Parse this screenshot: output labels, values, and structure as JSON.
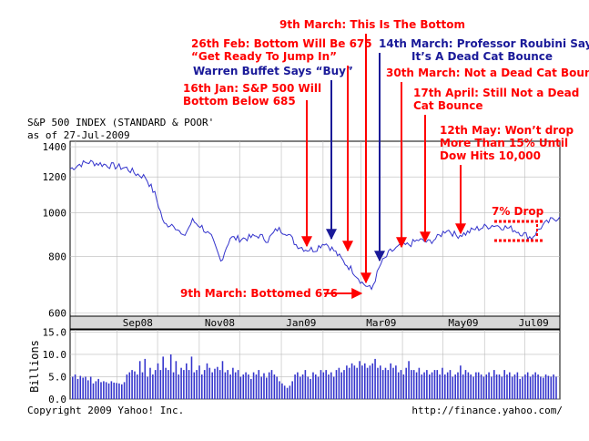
{
  "header": {
    "title": "S&P 500 INDEX (STANDARD & POOR'",
    "asof": "as of 27-Jul-2009"
  },
  "footer": {
    "copyright": "Copyright 2009 Yahoo! Inc.",
    "url": "http://finance.yahoo.com/"
  },
  "colors": {
    "price_line": "#3333cc",
    "volume_bar": "#3333cc",
    "annotation_red": "#ff0000",
    "annotation_blue": "#1a1a99",
    "axis_band": "#d8d8d8",
    "grid": "#bbbbbb"
  },
  "annotations": [
    {
      "id": "jan16",
      "color": "red",
      "lines": [
        "16th Jan: S&P 500 Will",
        "Bottom Below 685"
      ]
    },
    {
      "id": "feb26",
      "color": "red",
      "lines": [
        "26th Feb: Bottom Will Be 675",
        "“Get Ready To Jump In”"
      ]
    },
    {
      "id": "buffett",
      "color": "blue",
      "lines": [
        "Warren Buffet Says “Buy”"
      ]
    },
    {
      "id": "mar9top",
      "color": "red",
      "lines": [
        "9th March: This Is The Bottom"
      ]
    },
    {
      "id": "mar14",
      "color": "blue",
      "lines": [
        "14th March: Professor Roubini Says",
        "It’s A  Dead Cat Bounce"
      ]
    },
    {
      "id": "mar30",
      "color": "red",
      "lines": [
        "30th March: Not a Dead Cat Bounce"
      ]
    },
    {
      "id": "apr17",
      "color": "red",
      "lines": [
        "17th April: Still Not a Dead",
        "Cat Bounce"
      ]
    },
    {
      "id": "may12",
      "color": "red",
      "lines": [
        "12th May: Won’t drop",
        "More Than 15% Until",
        "Dow Hits 10,000"
      ]
    },
    {
      "id": "drop",
      "color": "red",
      "lines": [
        "7% Drop"
      ]
    },
    {
      "id": "bottomed",
      "color": "red",
      "lines": [
        "9th March: Bottomed 676"
      ]
    }
  ],
  "chart_data": [
    {
      "type": "line",
      "x_tick_labels": [
        "Sep08",
        "Nov08",
        "Jan09",
        "Mar09",
        "May09",
        "Jul09"
      ],
      "y_tick_labels": [
        "1400",
        "1200",
        "1000",
        "800",
        "600"
      ],
      "y_ticks": [
        1400,
        1200,
        1000,
        800,
        600
      ],
      "ylim": [
        590,
        1440
      ],
      "y_scale": "log",
      "grid": true,
      "x_range": [
        "2008-07-28",
        "2009-07-27"
      ],
      "series": [
        {
          "x": [
            "2008-07-28",
            "2008-08-04",
            "2008-08-11",
            "2008-08-18",
            "2008-08-25",
            "2008-09-01",
            "2008-09-08",
            "2008-09-15",
            "2008-09-22",
            "2008-09-29",
            "2008-10-06",
            "2008-10-13",
            "2008-10-20",
            "2008-10-27",
            "2008-11-03",
            "2008-11-10",
            "2008-11-17",
            "2008-11-24",
            "2008-12-01",
            "2008-12-08",
            "2008-12-15",
            "2008-12-22",
            "2008-12-29",
            "2009-01-05",
            "2009-01-12",
            "2009-01-19",
            "2009-01-26",
            "2009-02-02",
            "2009-02-09",
            "2009-02-16",
            "2009-02-23",
            "2009-03-02",
            "2009-03-09",
            "2009-03-16",
            "2009-03-23",
            "2009-03-30",
            "2009-04-06",
            "2009-04-13",
            "2009-04-20",
            "2009-04-27",
            "2009-05-04",
            "2009-05-11",
            "2009-05-18",
            "2009-05-25",
            "2009-06-01",
            "2009-06-08",
            "2009-06-15",
            "2009-06-22",
            "2009-06-29",
            "2009-07-06",
            "2009-07-13",
            "2009-07-20",
            "2009-07-27"
          ],
          "values": [
            1250,
            1280,
            1295,
            1285,
            1275,
            1265,
            1255,
            1220,
            1200,
            1100,
            940,
            945,
            880,
            960,
            930,
            880,
            780,
            880,
            875,
            880,
            890,
            870,
            920,
            905,
            850,
            830,
            830,
            860,
            825,
            780,
            745,
            700,
            676,
            770,
            820,
            840,
            850,
            870,
            860,
            880,
            920,
            890,
            900,
            920,
            930,
            940,
            930,
            920,
            900,
            880,
            930,
            960,
            980
          ]
        }
      ]
    },
    {
      "type": "bar",
      "ylabel": "Billions",
      "y_tick_labels": [
        "15.0",
        "10.0",
        "5.0",
        "0.0"
      ],
      "y_ticks": [
        15,
        10,
        5,
        0
      ],
      "ylim": [
        0,
        15.5
      ],
      "series": [
        {
          "values": [
            5.0,
            5.5,
            4.5,
            5.2,
            4.8,
            5.0,
            4.2,
            5.0,
            3.5,
            4.0,
            4.5,
            3.8,
            4.0,
            3.8,
            3.5,
            4.0,
            3.7,
            3.6,
            3.5,
            3.3,
            3.8,
            5.5,
            6.0,
            6.5,
            6.2,
            5.5,
            8.5,
            6.0,
            9.0,
            5.0,
            7.0,
            5.5,
            6.5,
            8.0,
            6.5,
            9.5,
            7.0,
            6.5,
            10.0,
            6.0,
            8.5,
            5.5,
            7.0,
            6.5,
            8.0,
            6.5,
            9.5,
            6.0,
            6.5,
            7.5,
            5.5,
            6.5,
            8.0,
            7.0,
            6.0,
            6.8,
            7.2,
            6.5,
            8.5,
            6.0,
            6.5,
            5.5,
            7.0,
            6.0,
            6.5,
            5.0,
            5.5,
            6.0,
            5.5,
            4.5,
            6.0,
            5.5,
            6.5,
            5.0,
            5.8,
            4.8,
            6.0,
            6.5,
            5.5,
            5.0,
            4.0,
            3.5,
            3.0,
            2.5,
            3.0,
            4.0,
            5.5,
            6.0,
            5.0,
            5.5,
            6.5,
            5.0,
            4.5,
            6.0,
            5.5,
            5.0,
            6.5,
            6.0,
            6.5,
            5.5,
            6.0,
            5.0,
            6.5,
            7.0,
            6.0,
            6.5,
            7.5,
            7.0,
            8.0,
            7.5,
            7.0,
            8.5,
            7.5,
            8.0,
            7.0,
            7.5,
            8.0,
            9.0,
            7.0,
            7.5,
            6.5,
            7.0,
            6.5,
            8.0,
            7.0,
            7.5,
            6.0,
            6.5,
            5.5,
            7.0,
            8.5,
            6.5,
            6.5,
            6.0,
            7.0,
            5.5,
            6.0,
            6.5,
            5.5,
            6.0,
            6.5,
            6.5,
            5.5,
            7.0,
            5.5,
            6.0,
            6.5,
            5.0,
            5.5,
            6.0,
            7.5,
            5.5,
            6.5,
            6.0,
            5.5,
            5.0,
            6.0,
            6.0,
            5.5,
            5.0,
            5.5,
            6.0,
            5.0,
            6.5,
            5.5,
            5.5,
            5.0,
            6.5,
            5.5,
            6.0,
            5.0,
            5.5,
            6.0,
            4.5,
            5.0,
            5.5,
            6.0,
            5.0,
            5.5,
            6.0,
            5.5,
            5.0,
            4.8,
            5.5,
            5.2,
            5.0,
            5.5,
            5.0
          ]
        }
      ]
    }
  ]
}
